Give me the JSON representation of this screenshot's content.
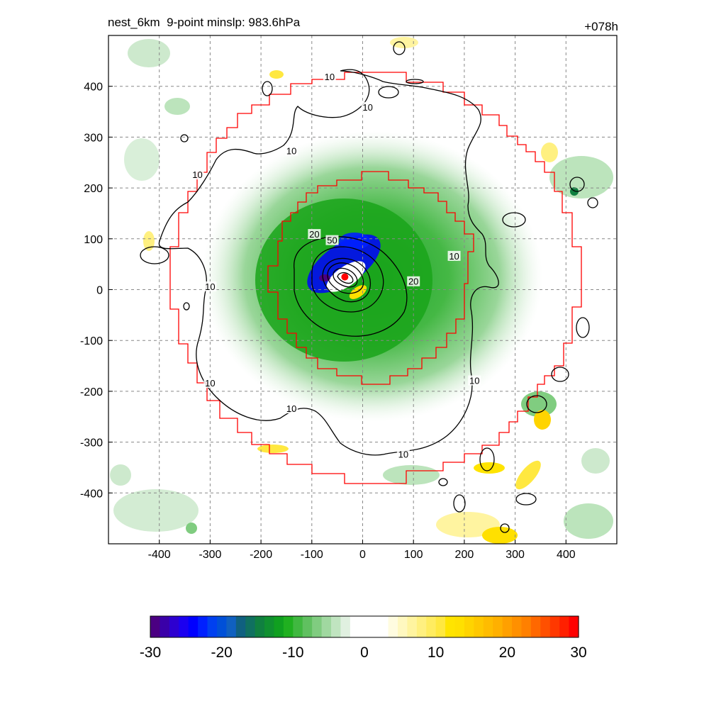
{
  "header": {
    "title_left": "nest_6km  9-point minslp: 983.6hPa",
    "title_right": "+078h"
  },
  "chart_data": {
    "type": "heatmap",
    "title": "nest_6km  9-point minslp: 983.6hPa",
    "forecast_hour": "+078h",
    "x_ticks": [
      -400,
      -300,
      -200,
      -100,
      0,
      100,
      200,
      300,
      400
    ],
    "y_ticks": [
      400,
      300,
      200,
      100,
      0,
      -100,
      -200,
      -300,
      -400
    ],
    "xlim": [
      -500,
      500
    ],
    "ylim": [
      -500,
      500
    ],
    "grid": true,
    "center": {
      "x": -35,
      "y": 25
    },
    "contour_labels": [
      {
        "text": "10",
        "x": -65,
        "y": 418
      },
      {
        "text": "10",
        "x": 10,
        "y": 358
      },
      {
        "text": "10",
        "x": -140,
        "y": 272
      },
      {
        "text": "10",
        "x": -325,
        "y": 225
      },
      {
        "text": "20",
        "x": -95,
        "y": 108
      },
      {
        "text": "50",
        "x": -60,
        "y": 96
      },
      {
        "text": "10",
        "x": 180,
        "y": 65
      },
      {
        "text": "20",
        "x": 100,
        "y": 15
      },
      {
        "text": "10",
        "x": -300,
        "y": 5
      },
      {
        "text": "10",
        "x": -300,
        "y": -185
      },
      {
        "text": "10",
        "x": 220,
        "y": -180
      },
      {
        "text": "10",
        "x": -140,
        "y": -235
      },
      {
        "text": "10",
        "x": 80,
        "y": -325
      }
    ],
    "colorbar": {
      "ticks": [
        -30,
        -20,
        -10,
        0,
        10,
        20,
        30
      ],
      "range": [
        -30,
        30
      ],
      "colors": [
        "#4b0082",
        "#3a00a8",
        "#2d00d0",
        "#1b00f0",
        "#0000ff",
        "#0020ff",
        "#0040f0",
        "#0050d8",
        "#1060c0",
        "#106080",
        "#107060",
        "#108040",
        "#109030",
        "#10a020",
        "#20b020",
        "#40b840",
        "#60c060",
        "#80cc80",
        "#a0d8a0",
        "#c0e4c0",
        "#e0f0e0",
        "#ffffff",
        "#ffffff",
        "#ffffff",
        "#ffffff",
        "#fffce0",
        "#fff8c0",
        "#fff4a0",
        "#fff080",
        "#ffec60",
        "#ffe840",
        "#ffe400",
        "#ffe000",
        "#ffd400",
        "#ffc800",
        "#ffbc00",
        "#ffb000",
        "#ffa000",
        "#ff9000",
        "#ff8000",
        "#ff6800",
        "#ff5000",
        "#ff3800",
        "#ff2000",
        "#ff0000"
      ]
    },
    "fields": {
      "negative": "green to blue to purple (negative values)",
      "positive": "yellow to orange to red (positive values)"
    },
    "colors": {
      "boundary": "#ff0000",
      "contour": "#000000",
      "grid": "#888888",
      "center_marker": "#ff0000"
    }
  }
}
